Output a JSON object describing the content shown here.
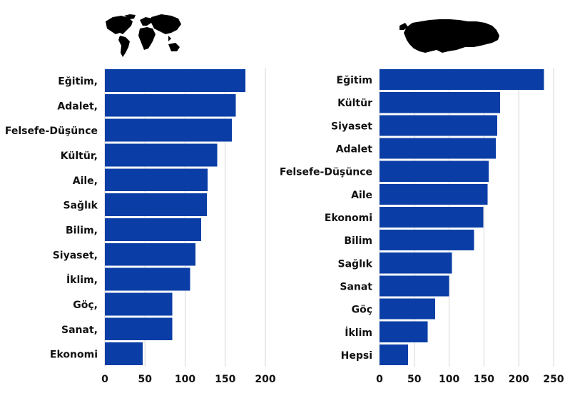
{
  "bar_color": "#0a3ea6",
  "chart_data": [
    {
      "type": "bar",
      "orientation": "horizontal",
      "icon": "world-map-icon",
      "title": "",
      "xlabel": "",
      "ylabel": "",
      "xlim": [
        0,
        200
      ],
      "xticks": [
        0,
        50,
        100,
        150,
        200
      ],
      "grid": true,
      "categories": [
        "Eğitim,",
        "Adalet,",
        "Felsefe-Düşünce",
        "Kültür,",
        "Aile,",
        "Sağlık",
        "Bilim,",
        "Siyaset,",
        "İklim,",
        "Göç,",
        "Sanat,",
        "Ekonomi"
      ],
      "values": [
        175,
        163,
        158,
        140,
        128,
        127,
        120,
        113,
        106,
        84,
        84,
        47
      ]
    },
    {
      "type": "bar",
      "orientation": "horizontal",
      "icon": "turkey-map-icon",
      "title": "",
      "xlabel": "",
      "ylabel": "",
      "xlim": [
        0,
        250
      ],
      "xticks": [
        0,
        50,
        100,
        150,
        200,
        250
      ],
      "grid": true,
      "categories": [
        "Eğitim",
        "Kültür",
        "Siyaset",
        "Adalet",
        "Felsefe-Düşünce",
        "Aile",
        "Ekonomi",
        "Bilim",
        "Sağlık",
        "Sanat",
        "Göç",
        "İklim",
        "Hepsi"
      ],
      "values": [
        236,
        173,
        169,
        167,
        157,
        155,
        149,
        136,
        104,
        100,
        80,
        69,
        41
      ]
    }
  ]
}
